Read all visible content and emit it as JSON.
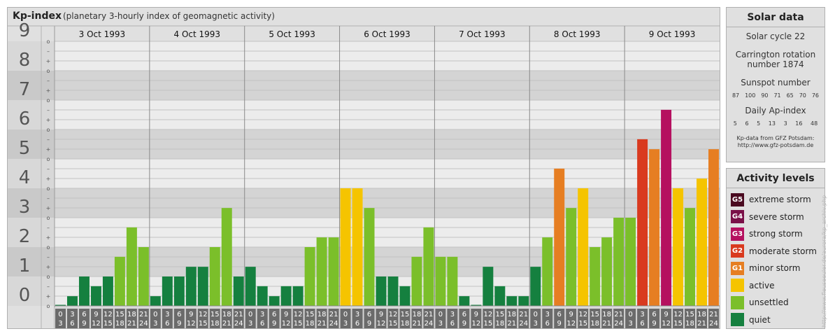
{
  "header": {
    "title": "Kp-index",
    "subtitle": "(planetary 3-hourly index of geomagnetic activity)"
  },
  "chart_data": {
    "type": "bar",
    "title": "Kp-index",
    "subtitle": "(planetary 3-hourly index of geomagnetic activity)",
    "ylim": [
      0,
      9
    ],
    "y_ticks": [
      "0",
      "1",
      "2",
      "3",
      "4",
      "5",
      "6",
      "7",
      "8",
      "9"
    ],
    "minor_tick_labels": [
      "o",
      "+",
      "–"
    ],
    "days": [
      "3 Oct 1993",
      "4 Oct 1993",
      "5 Oct 1993",
      "6 Oct 1993",
      "7 Oct 1993",
      "8 Oct 1993",
      "9 Oct 1993"
    ],
    "intervals": [
      [
        "0",
        "3"
      ],
      [
        "3",
        "6"
      ],
      [
        "6",
        "9"
      ],
      [
        "9",
        "12"
      ],
      [
        "12",
        "15"
      ],
      [
        "15",
        "18"
      ],
      [
        "18",
        "21"
      ],
      [
        "21",
        "24"
      ]
    ],
    "values": [
      [
        0.0,
        0.33,
        1.0,
        0.67,
        1.0,
        1.67,
        2.67,
        2.0
      ],
      [
        0.33,
        1.0,
        1.0,
        1.33,
        1.33,
        2.0,
        3.33,
        1.0
      ],
      [
        1.33,
        0.67,
        0.33,
        0.67,
        0.67,
        2.0,
        2.33,
        2.33
      ],
      [
        4.0,
        4.0,
        3.33,
        1.0,
        1.0,
        0.67,
        1.67,
        2.67
      ],
      [
        1.67,
        1.67,
        0.33,
        0.0,
        1.33,
        0.67,
        0.33,
        0.33
      ],
      [
        1.33,
        2.33,
        4.67,
        3.33,
        4.0,
        2.0,
        2.33,
        3.0
      ],
      [
        3.0,
        5.67,
        5.33,
        6.67,
        4.0,
        3.33,
        4.33,
        5.33
      ]
    ],
    "colors": {
      "quiet": "#15803f",
      "unsettled": "#7bbf2a",
      "active": "#f5c400",
      "G1": "#e67e22",
      "G2": "#d93a1f",
      "G3": "#b5105f",
      "G4": "#7a1048",
      "G5": "#4a0a20"
    }
  },
  "solar_data": {
    "title": "Solar data",
    "solar_cycle": "Solar cycle 22",
    "carrington_line1": "Carrington rotation",
    "carrington_line2": "number 1874",
    "sunspot_title": "Sunspot number",
    "sunspot_values": [
      "87",
      "100",
      "90",
      "71",
      "65",
      "70",
      "76"
    ],
    "ap_title": "Daily Ap-index",
    "ap_values": [
      "5",
      "6",
      "5",
      "13",
      "3",
      "16",
      "48"
    ],
    "credit_line1": "Kp-data from GFZ Potsdam:",
    "credit_line2": "http://www.gfz-potsdam.de"
  },
  "activity_levels": {
    "title": "Activity levels",
    "items": [
      {
        "badge": "G5",
        "label": "extreme storm",
        "color": "#4a0a20"
      },
      {
        "badge": "G4",
        "label": "severe storm",
        "color": "#7a1048"
      },
      {
        "badge": "G3",
        "label": "strong storm",
        "color": "#b5105f"
      },
      {
        "badge": "G2",
        "label": "moderate storm",
        "color": "#d93a1f"
      },
      {
        "badge": "G1",
        "label": "minor storm",
        "color": "#e67e22"
      },
      {
        "badge": "",
        "label": "active",
        "color": "#f5c400"
      },
      {
        "badge": "",
        "label": "unsettled",
        "color": "#7bbf2a"
      },
      {
        "badge": "",
        "label": "quiet",
        "color": "#15803f"
      }
    ]
  },
  "watermark": "http://www.fleuseeuler.de/aurora/kp_archiv.php"
}
